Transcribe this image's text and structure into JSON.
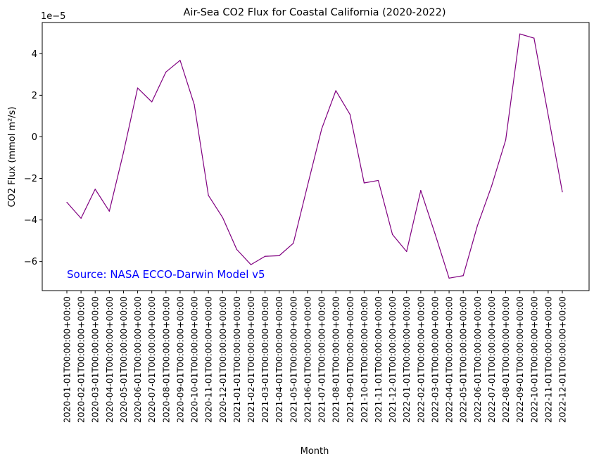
{
  "chart_data": {
    "type": "line",
    "title": "Air-Sea CO2 Flux for Coastal California (2020-2022)",
    "xlabel": "Month",
    "ylabel": "CO2 Flux (mmol m²/s)",
    "y_offset_text": "1e−5",
    "y_scale_factor": 1e-05,
    "ylim": [
      -7.4,
      5.5
    ],
    "yticks": [
      4,
      2,
      0,
      -2,
      -4,
      -6
    ],
    "ytick_labels": [
      "4",
      "2",
      "0",
      "−2",
      "−4",
      "−6"
    ],
    "grid": false,
    "line_color": "#800080",
    "annotation": {
      "text": "Source: NASA ECCO-Darwin Model v5",
      "color": "#0000ff"
    },
    "categories": [
      "2020-01-01T00:00:00+00:00",
      "2020-02-01T00:00:00+00:00",
      "2020-03-01T00:00:00+00:00",
      "2020-04-01T00:00:00+00:00",
      "2020-05-01T00:00:00+00:00",
      "2020-06-01T00:00:00+00:00",
      "2020-07-01T00:00:00+00:00",
      "2020-08-01T00:00:00+00:00",
      "2020-09-01T00:00:00+00:00",
      "2020-10-01T00:00:00+00:00",
      "2020-11-01T00:00:00+00:00",
      "2020-12-01T00:00:00+00:00",
      "2021-01-01T00:00:00+00:00",
      "2021-02-01T00:00:00+00:00",
      "2021-03-01T00:00:00+00:00",
      "2021-04-01T00:00:00+00:00",
      "2021-05-01T00:00:00+00:00",
      "2021-06-01T00:00:00+00:00",
      "2021-07-01T00:00:00+00:00",
      "2021-08-01T00:00:00+00:00",
      "2021-09-01T00:00:00+00:00",
      "2021-10-01T00:00:00+00:00",
      "2021-11-01T00:00:00+00:00",
      "2021-12-01T00:00:00+00:00",
      "2022-01-01T00:00:00+00:00",
      "2022-02-01T00:00:00+00:00",
      "2022-03-01T00:00:00+00:00",
      "2022-04-01T00:00:00+00:00",
      "2022-05-01T00:00:00+00:00",
      "2022-06-01T00:00:00+00:00",
      "2022-07-01T00:00:00+00:00",
      "2022-08-01T00:00:00+00:00",
      "2022-09-01T00:00:00+00:00",
      "2022-10-01T00:00:00+00:00",
      "2022-11-01T00:00:00+00:00",
      "2022-12-01T00:00:00+00:00"
    ],
    "values": [
      -3.15,
      -3.92,
      -2.52,
      -3.58,
      -0.75,
      2.35,
      1.68,
      3.12,
      3.68,
      1.55,
      -2.82,
      -3.88,
      -5.42,
      -6.15,
      -5.75,
      -5.72,
      -5.12,
      -2.35,
      0.38,
      2.22,
      1.08,
      -2.22,
      -2.1,
      -4.7,
      -5.52,
      -2.58,
      -4.65,
      -6.8,
      -6.68,
      -4.28,
      -2.38,
      -0.15,
      4.95,
      4.75,
      1.05,
      -2.65
    ]
  }
}
